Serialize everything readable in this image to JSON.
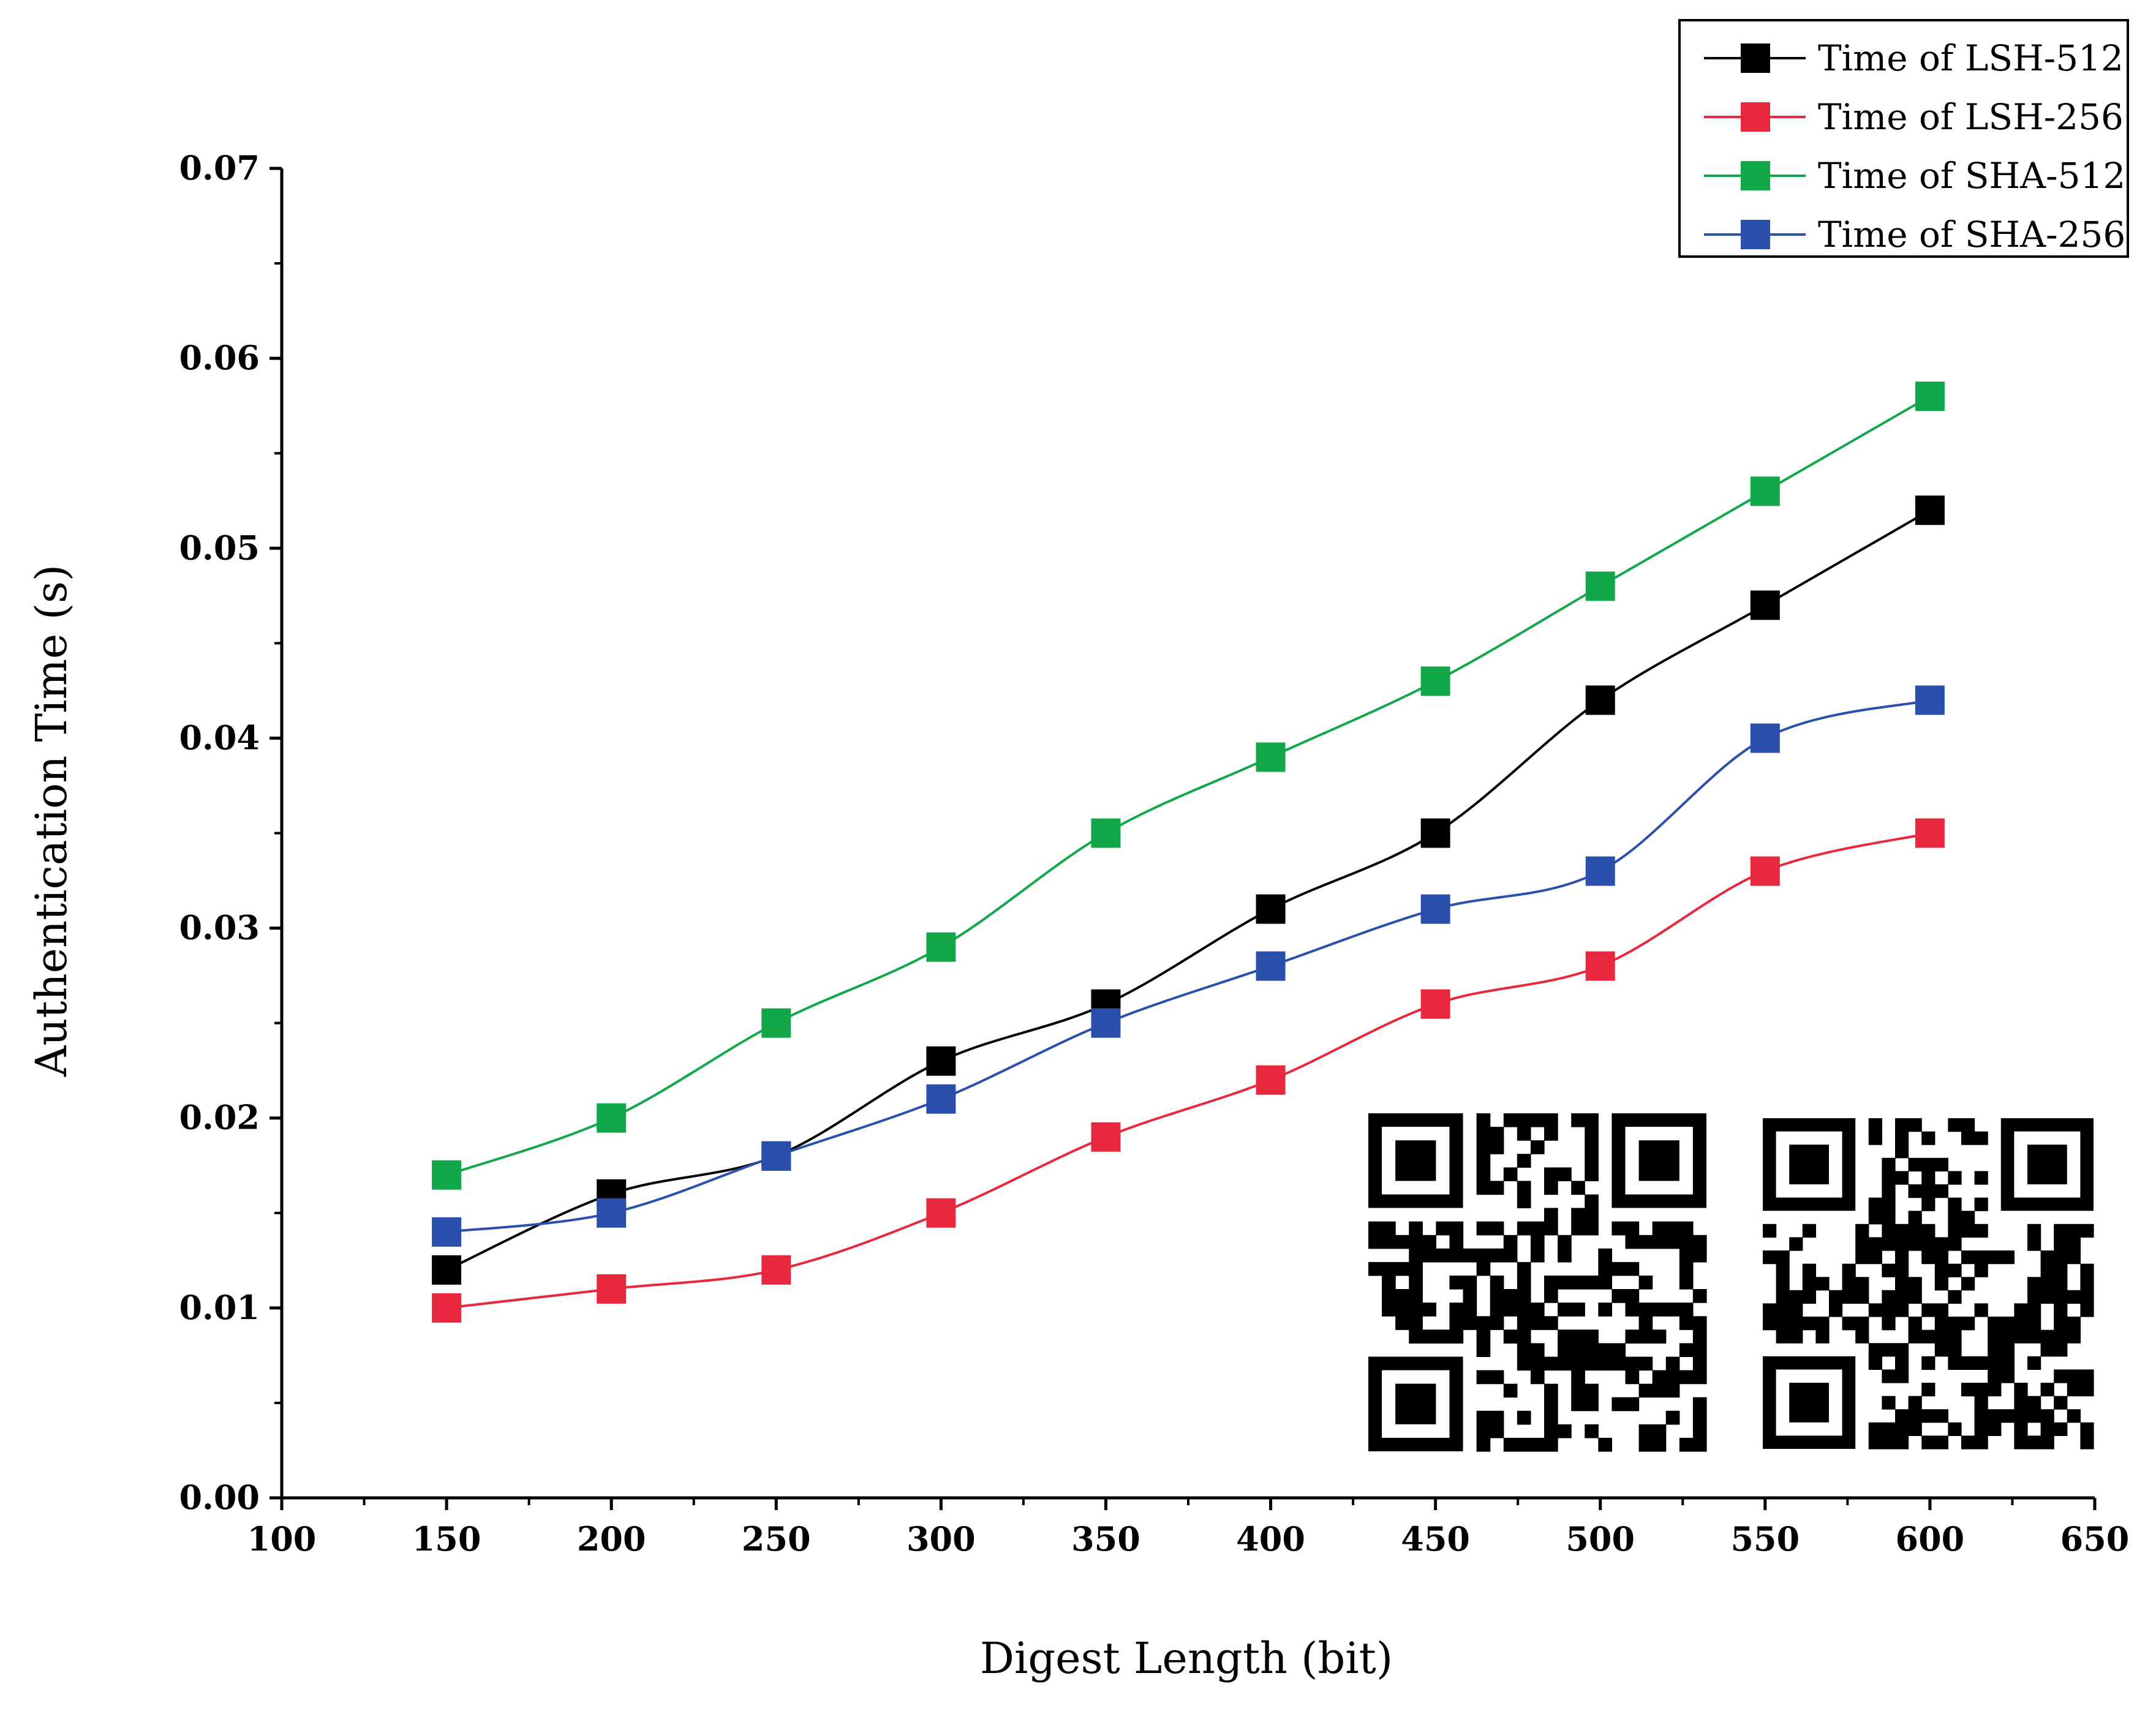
{
  "chart_data": {
    "type": "line",
    "title": "",
    "xlabel": "Digest Length (bit)",
    "ylabel": "Authentication Time (s)",
    "xlim": [
      100,
      650
    ],
    "ylim": [
      0,
      0.07
    ],
    "xticks": [
      100,
      150,
      200,
      250,
      300,
      350,
      400,
      450,
      500,
      550,
      600,
      650
    ],
    "yticks": [
      0.0,
      0.01,
      0.02,
      0.03,
      0.04,
      0.05,
      0.06,
      0.07
    ],
    "xtick_labels": [
      "100",
      "150",
      "200",
      "250",
      "300",
      "350",
      "400",
      "450",
      "500",
      "550",
      "600",
      "650"
    ],
    "ytick_labels": [
      "0.00",
      "0.01",
      "0.02",
      "0.03",
      "0.04",
      "0.05",
      "0.06",
      "0.07"
    ],
    "x": [
      150,
      200,
      250,
      300,
      350,
      400,
      450,
      500,
      550,
      600
    ],
    "legend_position": "top-right",
    "grid": false,
    "series": [
      {
        "name": "Time of LSH-512",
        "color": "#000000",
        "marker": "square",
        "values": [
          0.012,
          0.016,
          0.018,
          0.023,
          0.026,
          0.031,
          0.035,
          0.042,
          0.047,
          0.052
        ]
      },
      {
        "name": "Time of LSH-256",
        "color": "#e8283c",
        "marker": "square",
        "values": [
          0.01,
          0.011,
          0.012,
          0.015,
          0.019,
          0.022,
          0.026,
          0.028,
          0.033,
          0.035
        ]
      },
      {
        "name": "Time of SHA-512",
        "color": "#12a84a",
        "marker": "square",
        "values": [
          0.017,
          0.02,
          0.025,
          0.029,
          0.035,
          0.039,
          0.043,
          0.048,
          0.053,
          0.058
        ]
      },
      {
        "name": "Time of SHA-256",
        "color": "#2b4fad",
        "marker": "square",
        "values": [
          0.014,
          0.015,
          0.018,
          0.021,
          0.025,
          0.028,
          0.031,
          0.033,
          0.04,
          0.042
        ]
      }
    ]
  }
}
